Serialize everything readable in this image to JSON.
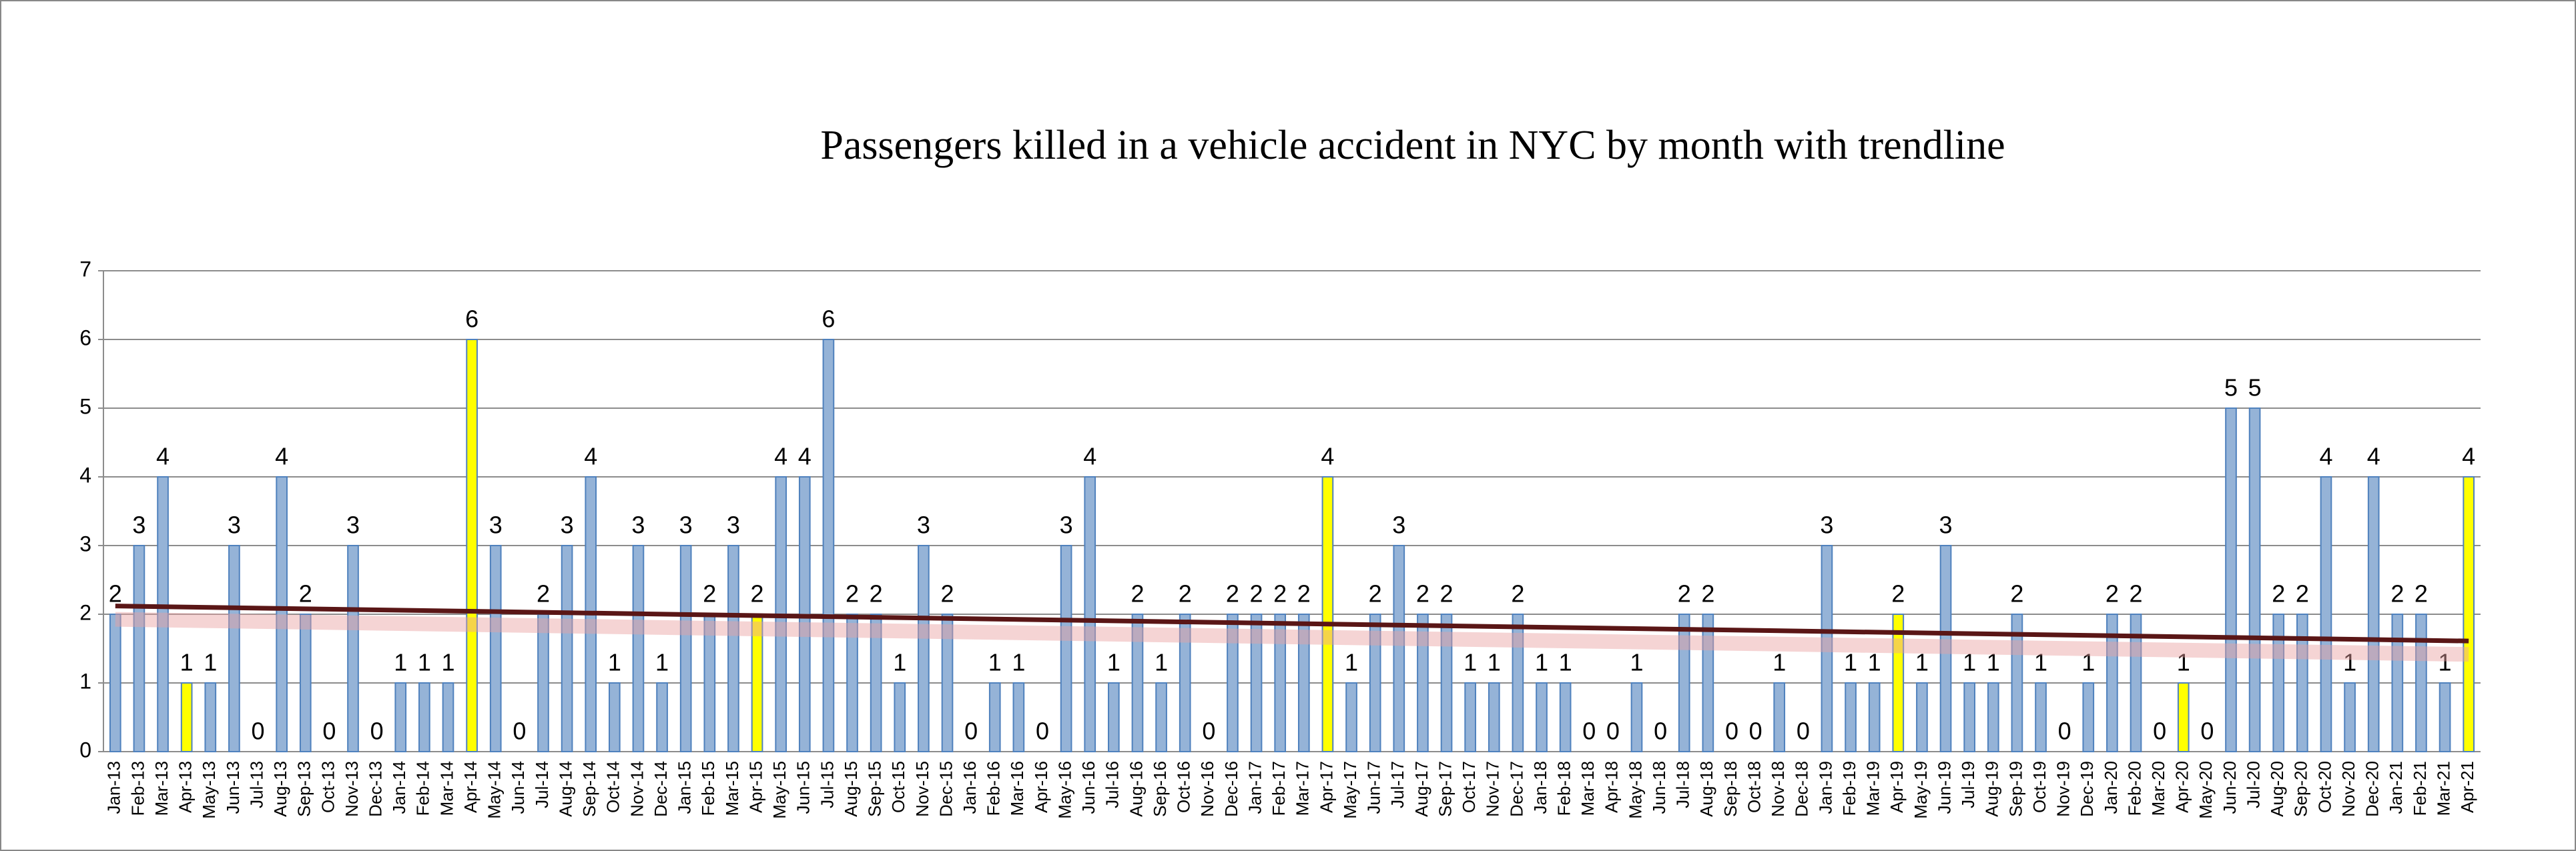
{
  "chart_data": {
    "type": "bar",
    "title": "Passengers killed in a vehicle accident in NYC by month with trendline",
    "categories": [
      "Jan-13",
      "Feb-13",
      "Mar-13",
      "Apr-13",
      "May-13",
      "Jun-13",
      "Jul-13",
      "Aug-13",
      "Sep-13",
      "Oct-13",
      "Nov-13",
      "Dec-13",
      "Jan-14",
      "Feb-14",
      "Mar-14",
      "Apr-14",
      "May-14",
      "Jun-14",
      "Jul-14",
      "Aug-14",
      "Sep-14",
      "Oct-14",
      "Nov-14",
      "Dec-14",
      "Jan-15",
      "Feb-15",
      "Mar-15",
      "Apr-15",
      "May-15",
      "Jun-15",
      "Jul-15",
      "Aug-15",
      "Sep-15",
      "Oct-15",
      "Nov-15",
      "Dec-15",
      "Jan-16",
      "Feb-16",
      "Mar-16",
      "Apr-16",
      "May-16",
      "Jun-16",
      "Jul-16",
      "Aug-16",
      "Sep-16",
      "Oct-16",
      "Nov-16",
      "Dec-16",
      "Jan-17",
      "Feb-17",
      "Mar-17",
      "Apr-17",
      "May-17",
      "Jun-17",
      "Jul-17",
      "Aug-17",
      "Sep-17",
      "Oct-17",
      "Nov-17",
      "Dec-17",
      "Jan-18",
      "Feb-18",
      "Mar-18",
      "Apr-18",
      "May-18",
      "Jun-18",
      "Jul-18",
      "Aug-18",
      "Sep-18",
      "Oct-18",
      "Nov-18",
      "Dec-18",
      "Jan-19",
      "Feb-19",
      "Mar-19",
      "Apr-19",
      "May-19",
      "Jun-19",
      "Jul-19",
      "Aug-19",
      "Sep-19",
      "Oct-19",
      "Nov-19",
      "Dec-19",
      "Jan-20",
      "Feb-20",
      "Mar-20",
      "Apr-20",
      "May-20",
      "Jun-20",
      "Jul-20",
      "Aug-20",
      "Sep-20",
      "Oct-20",
      "Nov-20",
      "Dec-20",
      "Jan-21",
      "Feb-21",
      "Mar-21",
      "Apr-21"
    ],
    "values": [
      2,
      3,
      4,
      1,
      1,
      3,
      0,
      4,
      2,
      0,
      3,
      0,
      1,
      1,
      1,
      6,
      3,
      0,
      2,
      3,
      4,
      1,
      3,
      1,
      3,
      2,
      3,
      2,
      4,
      4,
      6,
      2,
      2,
      1,
      3,
      2,
      0,
      1,
      1,
      0,
      3,
      4,
      1,
      2,
      1,
      2,
      0,
      2,
      2,
      2,
      2,
      4,
      1,
      2,
      3,
      2,
      2,
      1,
      1,
      2,
      1,
      1,
      0,
      0,
      1,
      0,
      2,
      2,
      0,
      0,
      1,
      0,
      3,
      1,
      1,
      2,
      1,
      3,
      1,
      1,
      2,
      1,
      0,
      1,
      2,
      2,
      0,
      1,
      0,
      5,
      5,
      2,
      2,
      4,
      1,
      4,
      2,
      2,
      1,
      4
    ],
    "colors": [
      "#95b3d7",
      "#95b3d7",
      "#95b3d7",
      "#ffff00",
      "#95b3d7",
      "#95b3d7",
      "#95b3d7",
      "#95b3d7",
      "#95b3d7",
      "#95b3d7",
      "#95b3d7",
      "#95b3d7",
      "#95b3d7",
      "#95b3d7",
      "#95b3d7",
      "#ffff00",
      "#95b3d7",
      "#95b3d7",
      "#95b3d7",
      "#95b3d7",
      "#95b3d7",
      "#95b3d7",
      "#95b3d7",
      "#95b3d7",
      "#95b3d7",
      "#95b3d7",
      "#95b3d7",
      "#ffff00",
      "#95b3d7",
      "#95b3d7",
      "#95b3d7",
      "#95b3d7",
      "#95b3d7",
      "#95b3d7",
      "#95b3d7",
      "#95b3d7",
      "#95b3d7",
      "#95b3d7",
      "#95b3d7",
      "#95b3d7",
      "#95b3d7",
      "#95b3d7",
      "#95b3d7",
      "#95b3d7",
      "#95b3d7",
      "#95b3d7",
      "#95b3d7",
      "#95b3d7",
      "#95b3d7",
      "#95b3d7",
      "#95b3d7",
      "#ffff00",
      "#95b3d7",
      "#95b3d7",
      "#95b3d7",
      "#95b3d7",
      "#95b3d7",
      "#95b3d7",
      "#95b3d7",
      "#95b3d7",
      "#95b3d7",
      "#95b3d7",
      "#95b3d7",
      "#95b3d7",
      "#95b3d7",
      "#95b3d7",
      "#95b3d7",
      "#95b3d7",
      "#95b3d7",
      "#95b3d7",
      "#95b3d7",
      "#95b3d7",
      "#95b3d7",
      "#95b3d7",
      "#95b3d7",
      "#ffff00",
      "#95b3d7",
      "#95b3d7",
      "#95b3d7",
      "#95b3d7",
      "#95b3d7",
      "#95b3d7",
      "#95b3d7",
      "#95b3d7",
      "#95b3d7",
      "#95b3d7",
      "#95b3d7",
      "#ffff00",
      "#95b3d7",
      "#95b3d7",
      "#95b3d7",
      "#95b3d7",
      "#95b3d7",
      "#95b3d7",
      "#95b3d7",
      "#95b3d7",
      "#95b3d7",
      "#95b3d7",
      "#95b3d7",
      "#ffff00"
    ],
    "trendline": {
      "start": 2.12,
      "end": 1.61,
      "color": "#5a1616"
    },
    "ylim": [
      0,
      7
    ],
    "yticks": [
      0,
      1,
      2,
      3,
      4,
      5,
      6,
      7
    ],
    "grid": true
  }
}
